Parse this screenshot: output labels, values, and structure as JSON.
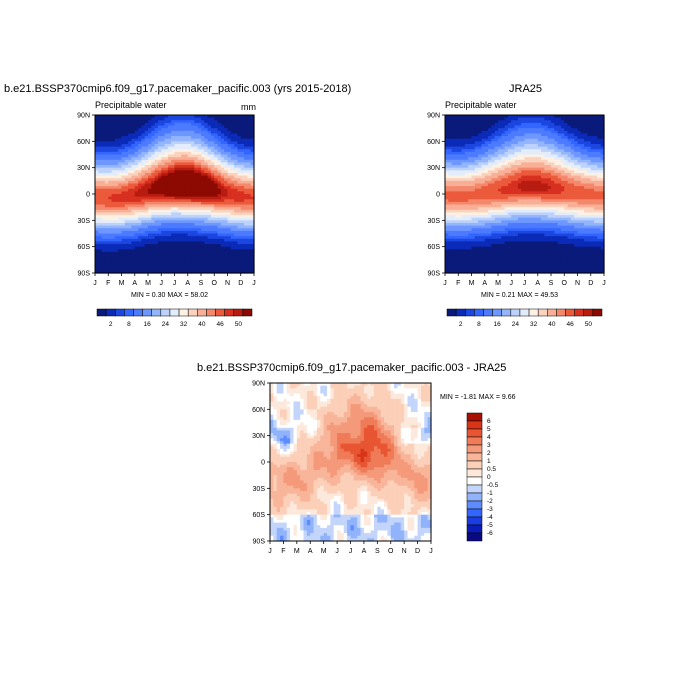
{
  "panels": [
    {
      "title": "b.e21.BSSP370cmip6.f09_g17.pacemaker_pacific.003 (yrs 2015-2018)",
      "left_label": "Precipitable water",
      "right_label": "mm",
      "minmax_text": "MIN =   0.30 MAX =  58.02"
    },
    {
      "title": "JRA25",
      "left_label": "Precipitable water",
      "right_label": "",
      "minmax_text": "MIN =   0.21 MAX =  49.53"
    },
    {
      "title": "b.e21.BSSP370cmip6.f09_g17.pacemaker_pacific.003 - JRA25",
      "left_label": "",
      "right_label": "",
      "minmax_text": "MIN =  -1.81 MAX =   9.66"
    }
  ],
  "colors": {
    "abs_scale": [
      "#0a1a7a",
      "#0b2ab8",
      "#1c46e0",
      "#3366ff",
      "#4d7bff",
      "#6e97ff",
      "#93b5fb",
      "#bcd2fb",
      "#e3ecfb",
      "#fdf1e4",
      "#fbd2be",
      "#f8af96",
      "#f4886c",
      "#ec5a3c",
      "#d83020",
      "#b81c10",
      "#8c0a02"
    ],
    "diff_scale": [
      "#0a0a80",
      "#0b1cb8",
      "#1a3ce0",
      "#3366ff",
      "#5e8cff",
      "#91b3fb",
      "#c3d5fb",
      "#ffffff",
      "#fde8dc",
      "#fbcfb8",
      "#f8b59a",
      "#f49a7a",
      "#ef7b58",
      "#e85532",
      "#d83418",
      "#a81004"
    ]
  },
  "chart_data": [
    {
      "type": "heatmap",
      "title": "b.e21.BSSP370cmip6.f09_g17.pacemaker_pacific.003 (yrs 2015-2018)",
      "variable": "Precipitable water",
      "units": "mm",
      "x_ticks": [
        "J",
        "F",
        "M",
        "A",
        "M",
        "J",
        "J",
        "A",
        "S",
        "O",
        "N",
        "D",
        "J"
      ],
      "y_ticks": [
        "90N",
        "60N",
        "30N",
        "0",
        "30S",
        "60S",
        "90S"
      ],
      "y_tick_values": [
        90,
        60,
        30,
        0,
        -30,
        -60,
        -90
      ],
      "colorbar_labels": [
        "2",
        "8",
        "16",
        "24",
        "32",
        "40",
        "46",
        "50"
      ],
      "min": 0.3,
      "max": 58.02,
      "model": {
        "itcz_lat": [
          -4,
          -5,
          -4,
          -1,
          3,
          7,
          9,
          9,
          7,
          4,
          0,
          -3,
          -4
        ],
        "peak": [
          46,
          46,
          47,
          48,
          50,
          53,
          56,
          58,
          56,
          52,
          48,
          47,
          46
        ],
        "north_shift": [
          0,
          0,
          1,
          3,
          6,
          9,
          11,
          11,
          9,
          6,
          3,
          1,
          0
        ]
      }
    },
    {
      "type": "heatmap",
      "title": "JRA25",
      "variable": "Precipitable water",
      "x_ticks": [
        "J",
        "F",
        "M",
        "A",
        "M",
        "J",
        "J",
        "A",
        "S",
        "O",
        "N",
        "D",
        "J"
      ],
      "y_ticks": [
        "90N",
        "60N",
        "30N",
        "0",
        "30S",
        "60S",
        "90S"
      ],
      "y_tick_values": [
        90,
        60,
        30,
        0,
        -30,
        -60,
        -90
      ],
      "colorbar_labels": [
        "2",
        "8",
        "16",
        "24",
        "32",
        "40",
        "46",
        "50"
      ],
      "min": 0.21,
      "max": 49.53,
      "model": {
        "itcz_lat": [
          -2,
          -3,
          -2,
          0,
          3,
          6,
          8,
          8,
          6,
          4,
          1,
          -1,
          -2
        ],
        "peak": [
          44,
          44,
          44,
          45,
          46,
          47,
          49,
          49,
          48,
          46,
          45,
          44,
          44
        ],
        "north_shift": [
          0,
          0,
          1,
          3,
          6,
          9,
          11,
          11,
          9,
          6,
          3,
          1,
          0
        ]
      }
    },
    {
      "type": "heatmap",
      "title": "b.e21.BSSP370cmip6.f09_g17.pacemaker_pacific.003 - JRA25",
      "x_ticks": [
        "J",
        "F",
        "M",
        "A",
        "M",
        "J",
        "J",
        "A",
        "S",
        "O",
        "N",
        "D",
        "J"
      ],
      "y_ticks": [
        "90N",
        "60N",
        "30N",
        "0",
        "30S",
        "60S",
        "90S"
      ],
      "y_tick_values": [
        90,
        60,
        30,
        0,
        -30,
        -60,
        -90
      ],
      "colorbar_labels": [
        "6",
        "5",
        "4",
        "3",
        "2",
        "1",
        "0.5",
        "0",
        "-0.5",
        "-1",
        "-2",
        "-3",
        "-4",
        "-5",
        "-6"
      ],
      "min": -1.81,
      "max": 9.66
    }
  ]
}
